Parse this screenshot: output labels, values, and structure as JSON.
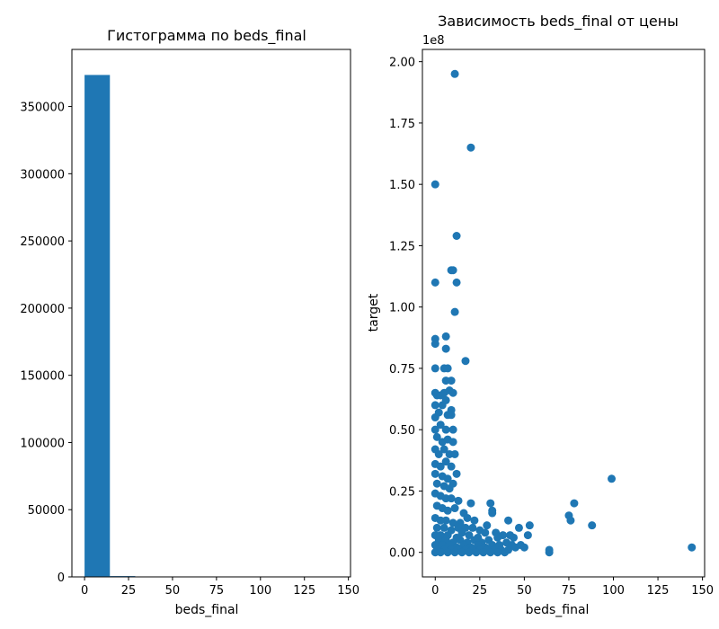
{
  "figure": {
    "background": "#ffffff"
  },
  "chart_data": [
    {
      "type": "bar",
      "subtype": "histogram",
      "title": "Гистограмма по beds_final",
      "xlabel": "beds_final",
      "ylabel": "",
      "color": "#1f77b4",
      "bin_edges": [
        0,
        14.4,
        28.8,
        43.2,
        57.6,
        72,
        86.4,
        100.8,
        115.2,
        129.6,
        144
      ],
      "counts": [
        373500,
        600,
        150,
        60,
        40,
        10,
        5,
        3,
        0,
        1
      ],
      "xlim": [
        -7.2,
        151.2
      ],
      "ylim": [
        0,
        392500
      ],
      "xticks": [
        0,
        25,
        50,
        75,
        100,
        125,
        150
      ],
      "xtick_labels": [
        "0",
        "25",
        "50",
        "75",
        "100",
        "125",
        "150"
      ],
      "yticks": [
        0,
        50000,
        100000,
        150000,
        200000,
        250000,
        300000,
        350000
      ],
      "ytick_labels": [
        "0",
        "50000",
        "100000",
        "150000",
        "200000",
        "250000",
        "300000",
        "350000"
      ],
      "grid": false
    },
    {
      "type": "scatter",
      "title": "Зависимость beds_final от цены",
      "xlabel": "beds_final",
      "ylabel": "target",
      "y_offset_label": "1e8",
      "color": "#1f77b4",
      "xlim": [
        -7.2,
        151.2
      ],
      "ylim": [
        -0.1,
        2.05
      ],
      "xticks": [
        0,
        25,
        50,
        75,
        100,
        125,
        150
      ],
      "xtick_labels": [
        "0",
        "25",
        "50",
        "75",
        "100",
        "125",
        "150"
      ],
      "yticks": [
        0,
        0.25,
        0.5,
        0.75,
        1.0,
        1.25,
        1.5,
        1.75,
        2.0
      ],
      "ytick_labels": [
        "0.00",
        "0.25",
        "0.50",
        "0.75",
        "1.00",
        "1.25",
        "1.50",
        "1.75",
        "2.00"
      ],
      "grid": false,
      "points": [
        [
          11,
          1.95
        ],
        [
          20,
          1.65
        ],
        [
          0,
          1.5
        ],
        [
          12,
          1.29
        ],
        [
          9,
          1.15
        ],
        [
          10,
          1.15
        ],
        [
          0,
          1.1
        ],
        [
          12,
          1.1
        ],
        [
          11,
          0.98
        ],
        [
          0,
          0.87
        ],
        [
          0,
          0.85
        ],
        [
          6,
          0.88
        ],
        [
          6,
          0.83
        ],
        [
          17,
          0.78
        ],
        [
          0,
          0.75
        ],
        [
          5,
          0.75
        ],
        [
          7,
          0.75
        ],
        [
          6,
          0.7
        ],
        [
          9,
          0.7
        ],
        [
          0,
          0.65
        ],
        [
          1,
          0.64
        ],
        [
          3,
          0.64
        ],
        [
          5,
          0.65
        ],
        [
          8,
          0.66
        ],
        [
          10,
          0.65
        ],
        [
          0,
          0.6
        ],
        [
          4,
          0.6
        ],
        [
          6,
          0.62
        ],
        [
          9,
          0.58
        ],
        [
          0,
          0.55
        ],
        [
          2,
          0.57
        ],
        [
          7,
          0.56
        ],
        [
          9,
          0.56
        ],
        [
          0,
          0.5
        ],
        [
          3,
          0.52
        ],
        [
          6,
          0.5
        ],
        [
          10,
          0.5
        ],
        [
          1,
          0.47
        ],
        [
          4,
          0.45
        ],
        [
          7,
          0.46
        ],
        [
          10,
          0.45
        ],
        [
          0,
          0.42
        ],
        [
          2,
          0.4
        ],
        [
          5,
          0.42
        ],
        [
          8,
          0.4
        ],
        [
          11,
          0.4
        ],
        [
          0,
          0.36
        ],
        [
          3,
          0.35
        ],
        [
          6,
          0.37
        ],
        [
          9,
          0.35
        ],
        [
          0,
          0.32
        ],
        [
          4,
          0.31
        ],
        [
          7,
          0.3
        ],
        [
          12,
          0.32
        ],
        [
          1,
          0.28
        ],
        [
          5,
          0.27
        ],
        [
          8,
          0.26
        ],
        [
          10,
          0.28
        ],
        [
          0,
          0.24
        ],
        [
          3,
          0.23
        ],
        [
          6,
          0.22
        ],
        [
          9,
          0.22
        ],
        [
          13,
          0.21
        ],
        [
          20,
          0.2
        ],
        [
          1,
          0.19
        ],
        [
          4,
          0.18
        ],
        [
          7,
          0.17
        ],
        [
          11,
          0.18
        ],
        [
          16,
          0.16
        ],
        [
          0,
          0.14
        ],
        [
          3,
          0.13
        ],
        [
          6,
          0.13
        ],
        [
          10,
          0.12
        ],
        [
          14,
          0.12
        ],
        [
          18,
          0.14
        ],
        [
          22,
          0.13
        ],
        [
          1,
          0.1
        ],
        [
          5,
          0.1
        ],
        [
          9,
          0.09
        ],
        [
          13,
          0.1
        ],
        [
          17,
          0.1
        ],
        [
          21,
          0.1
        ],
        [
          25,
          0.09
        ],
        [
          0,
          0.07
        ],
        [
          3,
          0.07
        ],
        [
          7,
          0.07
        ],
        [
          12,
          0.06
        ],
        [
          15,
          0.08
        ],
        [
          19,
          0.07
        ],
        [
          24,
          0.06
        ],
        [
          28,
          0.08
        ],
        [
          2,
          0.05
        ],
        [
          6,
          0.05
        ],
        [
          10,
          0.04
        ],
        [
          14,
          0.05
        ],
        [
          18,
          0.04
        ],
        [
          22,
          0.05
        ],
        [
          26,
          0.04
        ],
        [
          30,
          0.05
        ],
        [
          0,
          0.03
        ],
        [
          4,
          0.03
        ],
        [
          8,
          0.03
        ],
        [
          12,
          0.02
        ],
        [
          16,
          0.03
        ],
        [
          20,
          0.02
        ],
        [
          24,
          0.03
        ],
        [
          28,
          0.02
        ],
        [
          32,
          0.03
        ],
        [
          36,
          0.03
        ],
        [
          1,
          0.01
        ],
        [
          5,
          0.01
        ],
        [
          9,
          0.01
        ],
        [
          13,
          0.01
        ],
        [
          17,
          0.01
        ],
        [
          21,
          0.01
        ],
        [
          25,
          0.01
        ],
        [
          29,
          0.01
        ],
        [
          33,
          0.01
        ],
        [
          37,
          0.01
        ],
        [
          41,
          0.01
        ],
        [
          0,
          0.0
        ],
        [
          3,
          0.0
        ],
        [
          7,
          0.0
        ],
        [
          11,
          0.0
        ],
        [
          15,
          0.0
        ],
        [
          19,
          0.0
        ],
        [
          23,
          0.0
        ],
        [
          27,
          0.0
        ],
        [
          31,
          0.0
        ],
        [
          35,
          0.0
        ],
        [
          39,
          0.0
        ],
        [
          31,
          0.2
        ],
        [
          32,
          0.17
        ],
        [
          32,
          0.16
        ],
        [
          29,
          0.11
        ],
        [
          34,
          0.08
        ],
        [
          38,
          0.07
        ],
        [
          35,
          0.06
        ],
        [
          41,
          0.13
        ],
        [
          42,
          0.07
        ],
        [
          44,
          0.06
        ],
        [
          40,
          0.04
        ],
        [
          43,
          0.03
        ],
        [
          47,
          0.1
        ],
        [
          48,
          0.03
        ],
        [
          50,
          0.02
        ],
        [
          53,
          0.11
        ],
        [
          52,
          0.07
        ],
        [
          45,
          0.02
        ],
        [
          64,
          0.0
        ],
        [
          64,
          0.01
        ],
        [
          75,
          0.15
        ],
        [
          76,
          0.13
        ],
        [
          78,
          0.2
        ],
        [
          88,
          0.11
        ],
        [
          99,
          0.3
        ],
        [
          144,
          0.02
        ]
      ]
    }
  ]
}
